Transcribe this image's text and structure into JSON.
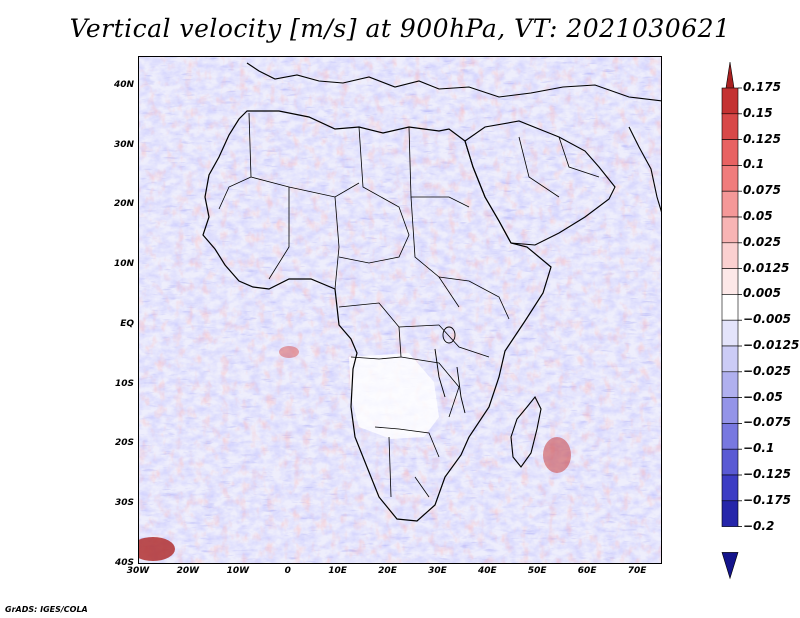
{
  "map": {
    "title": "Vertical velocity [m/s] at 900hPa, VT: 2021030621",
    "extent": {
      "lon_min": -30,
      "lon_max": 75,
      "lat_min": -40,
      "lat_max": 45
    },
    "lat_ticks": [
      {
        "label": "40N",
        "lat": 40
      },
      {
        "label": "30N",
        "lat": 30
      },
      {
        "label": "20N",
        "lat": 20
      },
      {
        "label": "10N",
        "lat": 10
      },
      {
        "label": "EQ",
        "lat": 0
      },
      {
        "label": "10S",
        "lat": -10
      },
      {
        "label": "20S",
        "lat": -20
      },
      {
        "label": "30S",
        "lat": -30
      },
      {
        "label": "40S",
        "lat": -40
      }
    ],
    "lon_ticks": [
      {
        "label": "30W",
        "lon": -30
      },
      {
        "label": "20W",
        "lon": -20
      },
      {
        "label": "10W",
        "lon": -10
      },
      {
        "label": "0",
        "lon": 0
      },
      {
        "label": "10E",
        "lon": 10
      },
      {
        "label": "20E",
        "lon": 20
      },
      {
        "label": "30E",
        "lon": 30
      },
      {
        "label": "40E",
        "lon": 40
      },
      {
        "label": "50E",
        "lon": 50
      },
      {
        "label": "60E",
        "lon": 60
      },
      {
        "label": "70E",
        "lon": 70
      }
    ]
  },
  "colorbar": {
    "levels": [
      "0.175",
      "0.15",
      "0.125",
      "0.1",
      "0.075",
      "0.05",
      "0.025",
      "0.0125",
      "0.005",
      "−0.005",
      "−0.0125",
      "−0.025",
      "−0.05",
      "−0.075",
      "−0.1",
      "−0.125",
      "−0.175",
      "−0.2"
    ],
    "colors": [
      "#a82020",
      "#c43232",
      "#d84848",
      "#e86262",
      "#f07c7c",
      "#f59898",
      "#f8b4b4",
      "#fbd0d0",
      "#fde8e8",
      "#ffffff",
      "#e4e4fb",
      "#ccccf6",
      "#b0b0ef",
      "#9494e8",
      "#7878e0",
      "#5a5ad4",
      "#3c3cc4",
      "#2626aa",
      "#14148c"
    ]
  },
  "credit": "GrADS: IGES/COLA"
}
